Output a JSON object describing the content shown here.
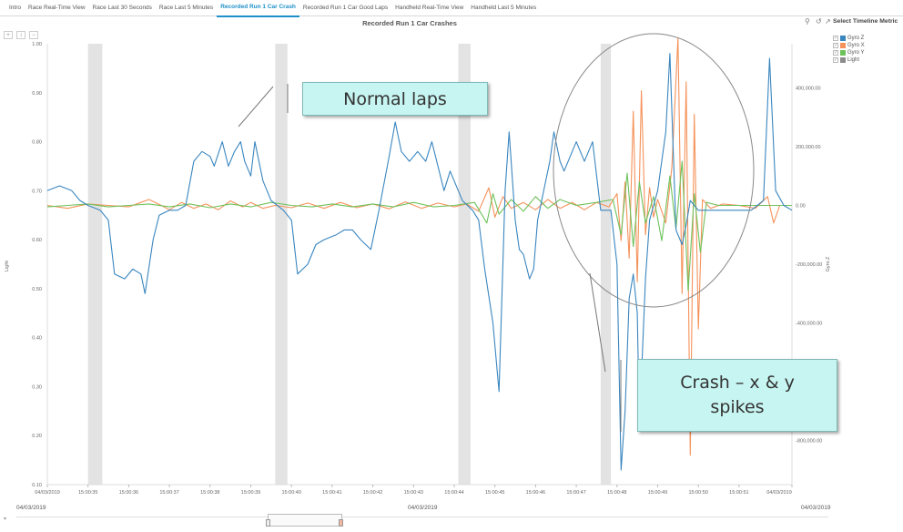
{
  "tabs": [
    "Intro",
    "Race Real-Time View",
    "Race Last 30 Seconds",
    "Race Last 5 Minutes",
    "Recorded Run 1 Car Crash",
    "Recorded Run 1 Car Good Laps",
    "Handheld Real-Time View",
    "Handheld Last 5 Minutes"
  ],
  "active_tab": 4,
  "chart_title": "Recorded Run 1 Car Crashes",
  "metric_title": "Select Timeline Metric",
  "legend": [
    {
      "label": "Gyro Z",
      "color": "#3a86bf"
    },
    {
      "label": "Gyro X",
      "color": "#f5925a"
    },
    {
      "label": "Gyro Y",
      "color": "#6ec25c"
    },
    {
      "label": "Light",
      "color": "#8c8c8c"
    }
  ],
  "zoom_label": "+",
  "bottom_dates": {
    "left": "04/03/2019",
    "center": "04/03/2019",
    "right": "04/03/2019"
  },
  "callouts": {
    "normal": "Normal laps",
    "crash": "Crash – x & y spikes"
  },
  "chart_data": {
    "type": "line",
    "left_axis": {
      "label": "Light",
      "range": [
        0.1,
        1.0
      ],
      "ticks": [
        "0.10",
        "0.20",
        "0.30",
        "0.40",
        "0.50",
        "0.60",
        "0.70",
        "0.80",
        "0.90",
        "1.00"
      ]
    },
    "right_axis": {
      "label": "Gyro Z",
      "range": [
        -950000,
        550000
      ],
      "ticks": [
        "-800,000.00",
        "-600,000.00",
        "-400,000.00",
        "-200,000.00",
        "0.00",
        "200,000.00",
        "400,000.00"
      ]
    },
    "x_ticks": [
      "04/03/2019",
      "15:00:35",
      "15:00:36",
      "15:00:37",
      "15:00:38",
      "15:00:39",
      "15:00:40",
      "15:00:41",
      "15:00:42",
      "15:00:43",
      "15:00:44",
      "15:00:45",
      "15:00:46",
      "15:00:47",
      "15:00:48",
      "15:00:49",
      "15:00:50",
      "15:00:51",
      "04/03/2019"
    ],
    "shaded_regions": [
      [
        35.0,
        35.35
      ],
      [
        39.6,
        39.9
      ],
      [
        44.1,
        44.4
      ],
      [
        47.6,
        47.85
      ]
    ],
    "series": [
      {
        "name": "Gyro Z",
        "axis": "left",
        "color": "#3a86bf",
        "points": [
          [
            34.0,
            0.7
          ],
          [
            34.3,
            0.71
          ],
          [
            34.6,
            0.7
          ],
          [
            34.8,
            0.68
          ],
          [
            35.0,
            0.67
          ],
          [
            35.3,
            0.66
          ],
          [
            35.5,
            0.64
          ],
          [
            35.65,
            0.53
          ],
          [
            35.9,
            0.52
          ],
          [
            36.1,
            0.54
          ],
          [
            36.3,
            0.53
          ],
          [
            36.4,
            0.49
          ],
          [
            36.6,
            0.6
          ],
          [
            36.75,
            0.65
          ],
          [
            37.0,
            0.66
          ],
          [
            37.2,
            0.66
          ],
          [
            37.4,
            0.67
          ],
          [
            37.6,
            0.76
          ],
          [
            37.8,
            0.78
          ],
          [
            38.0,
            0.77
          ],
          [
            38.1,
            0.75
          ],
          [
            38.3,
            0.8
          ],
          [
            38.45,
            0.75
          ],
          [
            38.6,
            0.78
          ],
          [
            38.75,
            0.8
          ],
          [
            38.85,
            0.76
          ],
          [
            39.0,
            0.73
          ],
          [
            39.1,
            0.8
          ],
          [
            39.3,
            0.72
          ],
          [
            39.5,
            0.68
          ],
          [
            39.8,
            0.66
          ],
          [
            40.0,
            0.64
          ],
          [
            40.15,
            0.53
          ],
          [
            40.4,
            0.55
          ],
          [
            40.6,
            0.59
          ],
          [
            40.8,
            0.6
          ],
          [
            41.1,
            0.61
          ],
          [
            41.3,
            0.62
          ],
          [
            41.5,
            0.62
          ],
          [
            41.7,
            0.6
          ],
          [
            41.95,
            0.58
          ],
          [
            42.15,
            0.66
          ],
          [
            42.4,
            0.77
          ],
          [
            42.55,
            0.84
          ],
          [
            42.7,
            0.78
          ],
          [
            42.9,
            0.76
          ],
          [
            43.1,
            0.78
          ],
          [
            43.3,
            0.76
          ],
          [
            43.45,
            0.8
          ],
          [
            43.6,
            0.75
          ],
          [
            43.75,
            0.7
          ],
          [
            43.9,
            0.74
          ],
          [
            44.2,
            0.68
          ],
          [
            44.45,
            0.66
          ],
          [
            44.6,
            0.64
          ],
          [
            44.75,
            0.54
          ],
          [
            44.95,
            0.43
          ],
          [
            45.1,
            0.29
          ],
          [
            45.25,
            0.7
          ],
          [
            45.35,
            0.82
          ],
          [
            45.5,
            0.64
          ],
          [
            45.6,
            0.58
          ],
          [
            45.7,
            0.57
          ],
          [
            45.85,
            0.52
          ],
          [
            45.95,
            0.54
          ],
          [
            46.05,
            0.64
          ],
          [
            46.2,
            0.7
          ],
          [
            46.35,
            0.76
          ],
          [
            46.45,
            0.82
          ],
          [
            46.6,
            0.76
          ],
          [
            46.7,
            0.74
          ],
          [
            46.85,
            0.77
          ],
          [
            47.0,
            0.8
          ],
          [
            47.2,
            0.76
          ],
          [
            47.4,
            0.8
          ],
          [
            47.6,
            0.66
          ],
          [
            47.85,
            0.66
          ],
          [
            48.0,
            0.55
          ],
          [
            48.1,
            0.13
          ],
          [
            48.2,
            0.25
          ],
          [
            48.3,
            0.48
          ],
          [
            48.4,
            0.53
          ],
          [
            48.5,
            0.45
          ],
          [
            48.55,
            0.22
          ],
          [
            48.7,
            0.52
          ],
          [
            48.8,
            0.64
          ],
          [
            49.0,
            0.7
          ],
          [
            49.2,
            0.82
          ],
          [
            49.3,
            0.98
          ],
          [
            49.45,
            0.62
          ],
          [
            49.6,
            0.59
          ],
          [
            49.7,
            0.63
          ],
          [
            49.8,
            0.68
          ],
          [
            50.0,
            0.66
          ],
          [
            50.3,
            0.66
          ],
          [
            50.7,
            0.66
          ],
          [
            51.0,
            0.66
          ],
          [
            51.3,
            0.66
          ],
          [
            51.6,
            0.68
          ],
          [
            51.75,
            0.97
          ],
          [
            51.9,
            0.7
          ],
          [
            52.1,
            0.67
          ],
          [
            52.3,
            0.66
          ]
        ]
      },
      {
        "name": "Gyro X",
        "axis": "right",
        "color": "#f5925a",
        "points": [
          [
            34.0,
            0
          ],
          [
            34.5,
            -10000
          ],
          [
            35.0,
            5000
          ],
          [
            35.5,
            0
          ],
          [
            36.0,
            -5000
          ],
          [
            36.3,
            10000
          ],
          [
            36.5,
            20000
          ],
          [
            36.8,
            0
          ],
          [
            37.0,
            -15000
          ],
          [
            37.3,
            10000
          ],
          [
            37.6,
            -10000
          ],
          [
            37.9,
            5000
          ],
          [
            38.2,
            -15000
          ],
          [
            38.5,
            15000
          ],
          [
            38.8,
            -5000
          ],
          [
            39.0,
            10000
          ],
          [
            39.3,
            -10000
          ],
          [
            39.6,
            0
          ],
          [
            40.0,
            -8000
          ],
          [
            40.4,
            8000
          ],
          [
            40.8,
            -10000
          ],
          [
            41.2,
            10000
          ],
          [
            41.6,
            -8000
          ],
          [
            42.0,
            5000
          ],
          [
            42.4,
            -12000
          ],
          [
            42.8,
            12000
          ],
          [
            43.2,
            -10000
          ],
          [
            43.6,
            8000
          ],
          [
            44.0,
            -5000
          ],
          [
            44.3,
            5000
          ],
          [
            44.6,
            -20000
          ],
          [
            44.85,
            60000
          ],
          [
            45.0,
            -40000
          ],
          [
            45.2,
            30000
          ],
          [
            45.4,
            -10000
          ],
          [
            45.7,
            10000
          ],
          [
            46.0,
            -15000
          ],
          [
            46.3,
            20000
          ],
          [
            46.6,
            -10000
          ],
          [
            46.9,
            10000
          ],
          [
            47.2,
            -15000
          ],
          [
            47.5,
            10000
          ],
          [
            47.8,
            -5000
          ],
          [
            48.0,
            40000
          ],
          [
            48.1,
            -120000
          ],
          [
            48.2,
            80000
          ],
          [
            48.3,
            -180000
          ],
          [
            48.4,
            320000
          ],
          [
            48.5,
            -260000
          ],
          [
            48.6,
            390000
          ],
          [
            48.7,
            -100000
          ],
          [
            48.8,
            60000
          ],
          [
            48.9,
            -40000
          ],
          [
            49.0,
            20000
          ],
          [
            49.2,
            -60000
          ],
          [
            49.35,
            130000
          ],
          [
            49.5,
            570000
          ],
          [
            49.6,
            -300000
          ],
          [
            49.7,
            420000
          ],
          [
            49.8,
            -850000
          ],
          [
            49.9,
            310000
          ],
          [
            50.0,
            -420000
          ],
          [
            50.1,
            20000
          ],
          [
            50.3,
            -10000
          ],
          [
            50.6,
            5000
          ],
          [
            51.0,
            0
          ],
          [
            51.4,
            -10000
          ],
          [
            51.7,
            30000
          ],
          [
            51.85,
            -60000
          ],
          [
            52.0,
            0
          ],
          [
            52.3,
            0
          ]
        ]
      },
      {
        "name": "Gyro Y",
        "axis": "right",
        "color": "#6ec25c",
        "points": [
          [
            34.0,
            -5000
          ],
          [
            34.5,
            0
          ],
          [
            35.0,
            5000
          ],
          [
            35.5,
            -5000
          ],
          [
            36.0,
            0
          ],
          [
            36.5,
            5000
          ],
          [
            37.0,
            -5000
          ],
          [
            37.5,
            5000
          ],
          [
            38.0,
            -8000
          ],
          [
            38.5,
            5000
          ],
          [
            39.0,
            -5000
          ],
          [
            39.5,
            10000
          ],
          [
            40.0,
            0
          ],
          [
            40.5,
            -5000
          ],
          [
            41.0,
            5000
          ],
          [
            41.5,
            -5000
          ],
          [
            42.0,
            5000
          ],
          [
            42.5,
            -5000
          ],
          [
            43.0,
            10000
          ],
          [
            43.5,
            -5000
          ],
          [
            44.0,
            0
          ],
          [
            44.5,
            10000
          ],
          [
            44.8,
            -60000
          ],
          [
            44.95,
            40000
          ],
          [
            45.1,
            -30000
          ],
          [
            45.4,
            20000
          ],
          [
            45.7,
            -20000
          ],
          [
            46.0,
            30000
          ],
          [
            46.3,
            -10000
          ],
          [
            46.6,
            20000
          ],
          [
            47.0,
            0
          ],
          [
            47.5,
            10000
          ],
          [
            47.9,
            20000
          ],
          [
            48.1,
            -100000
          ],
          [
            48.25,
            110000
          ],
          [
            48.4,
            -140000
          ],
          [
            48.55,
            80000
          ],
          [
            48.7,
            -60000
          ],
          [
            48.9,
            30000
          ],
          [
            49.1,
            -120000
          ],
          [
            49.3,
            100000
          ],
          [
            49.45,
            -80000
          ],
          [
            49.6,
            150000
          ],
          [
            49.75,
            -290000
          ],
          [
            49.9,
            40000
          ],
          [
            50.05,
            -160000
          ],
          [
            50.2,
            10000
          ],
          [
            50.5,
            0
          ],
          [
            51.0,
            0
          ],
          [
            51.5,
            0
          ],
          [
            52.3,
            0
          ]
        ]
      }
    ]
  }
}
